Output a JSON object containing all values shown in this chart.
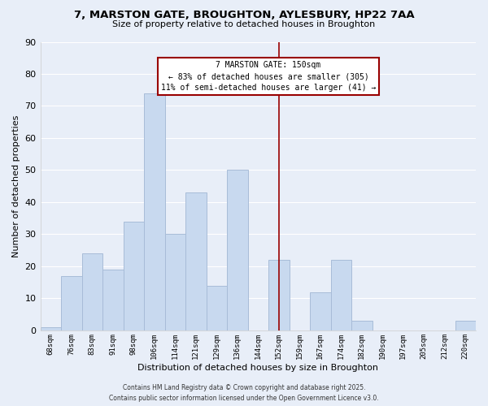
{
  "title_line1": "7, MARSTON GATE, BROUGHTON, AYLESBURY, HP22 7AA",
  "title_line2": "Size of property relative to detached houses in Broughton",
  "xlabel": "Distribution of detached houses by size in Broughton",
  "ylabel": "Number of detached properties",
  "categories": [
    "68sqm",
    "76sqm",
    "83sqm",
    "91sqm",
    "98sqm",
    "106sqm",
    "114sqm",
    "121sqm",
    "129sqm",
    "136sqm",
    "144sqm",
    "152sqm",
    "159sqm",
    "167sqm",
    "174sqm",
    "182sqm",
    "190sqm",
    "197sqm",
    "205sqm",
    "212sqm",
    "220sqm"
  ],
  "values": [
    1,
    17,
    24,
    19,
    34,
    74,
    30,
    43,
    14,
    50,
    0,
    22,
    0,
    12,
    22,
    3,
    0,
    0,
    0,
    0,
    3
  ],
  "bar_color": "#c8d9ef",
  "bar_edge_color": "#a8bcd8",
  "vline_x_idx": 11,
  "vline_color": "#990000",
  "annotation_title": "7 MARSTON GATE: 150sqm",
  "annotation_line1": "← 83% of detached houses are smaller (305)",
  "annotation_line2": "11% of semi-detached houses are larger (41) →",
  "annotation_box_color": "#ffffff",
  "annotation_box_edge": "#990000",
  "ylim": [
    0,
    90
  ],
  "yticks": [
    0,
    10,
    20,
    30,
    40,
    50,
    60,
    70,
    80,
    90
  ],
  "footer_line1": "Contains HM Land Registry data © Crown copyright and database right 2025.",
  "footer_line2": "Contains public sector information licensed under the Open Government Licence v3.0.",
  "bg_color": "#e8eef8",
  "grid_color": "#ffffff",
  "spine_color": "#cccccc"
}
